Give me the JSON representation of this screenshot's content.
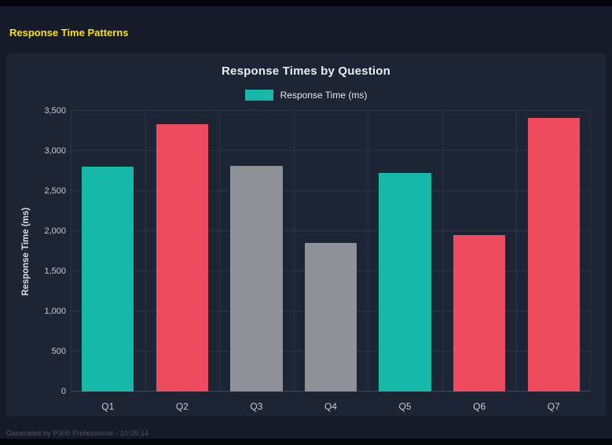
{
  "page": {
    "title": "Response Time Patterns",
    "footer": "Generated by P300 Professional - 10:05:14"
  },
  "chart_data": {
    "type": "bar",
    "title": "Response Times by Question",
    "ylabel": "Response Time (ms)",
    "xlabel": "",
    "categories": [
      "Q1",
      "Q2",
      "Q3",
      "Q4",
      "Q5",
      "Q6",
      "Q7"
    ],
    "values": [
      2800,
      3330,
      2810,
      1850,
      2730,
      1950,
      3410
    ],
    "bar_colors": [
      "#16b8a8",
      "#ef4d5f",
      "#8e9196",
      "#8e9196",
      "#16b8a8",
      "#ef4d5f",
      "#ef4d5f"
    ],
    "ylim": [
      0,
      3500
    ],
    "yticks": [
      0,
      500,
      1000,
      1500,
      2000,
      2500,
      3000,
      3500
    ],
    "ytick_labels": [
      "0",
      "500",
      "1,000",
      "1,500",
      "2,000",
      "2,500",
      "3,000",
      "3,500"
    ],
    "grid": true,
    "legend": {
      "position": "top",
      "items": [
        {
          "label": "Response Time (ms)",
          "color": "#16b8a8"
        }
      ]
    }
  },
  "colors": {
    "page_background": "#151b28",
    "panel_background": "#1d2433",
    "title_accent": "#ffe100",
    "grid_line": "#2a3444",
    "tick_text": "#c6ccd6",
    "teal": "#16b8a8",
    "red": "#ef4d5f",
    "gray": "#8e9196"
  }
}
